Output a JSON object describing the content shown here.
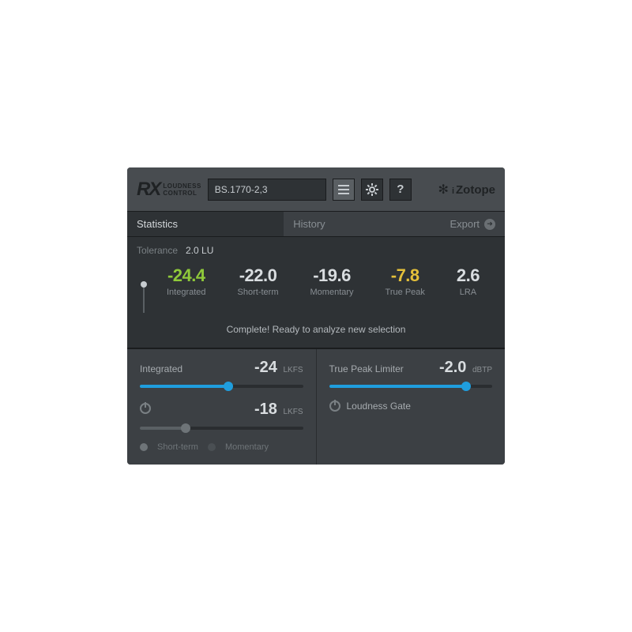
{
  "header": {
    "logo_main": "RX",
    "logo_sub_line1": "LOUDNESS",
    "logo_sub_line2": "CONTROL",
    "preset": "BS.1770-2,3",
    "brand_name": "Zotope"
  },
  "tabs": {
    "statistics": "Statistics",
    "history": "History",
    "export": "Export"
  },
  "stats": {
    "tolerance_label": "Tolerance",
    "tolerance_value": "2.0 LU",
    "meters": [
      {
        "value": "-24.4",
        "label": "Integrated",
        "color": "green"
      },
      {
        "value": "-22.0",
        "label": "Short-term",
        "color": "white"
      },
      {
        "value": "-19.6",
        "label": "Momentary",
        "color": "white"
      },
      {
        "value": "-7.8",
        "label": "True Peak",
        "color": "yellow"
      },
      {
        "value": "2.6",
        "label": "LRA",
        "color": "white"
      }
    ],
    "status": "Complete!  Ready to analyze new selection"
  },
  "controls": {
    "integrated": {
      "label": "Integrated",
      "value": "-24",
      "unit": "LKFS",
      "slider_fill_pct": 54,
      "slider_knob_pct": 54,
      "accent": "#1f9ede"
    },
    "secondary": {
      "value": "-18",
      "unit": "LKFS",
      "slider_fill_pct": 28,
      "slider_knob_pct": 28,
      "enabled": false
    },
    "radio_short": "Short-term",
    "radio_momentary": "Momentary",
    "truepeak": {
      "label": "True Peak Limiter",
      "value": "-2.0",
      "unit": "dBTP",
      "slider_fill_pct": 84,
      "slider_knob_pct": 84
    },
    "gate_label": "Loudness Gate"
  },
  "colors": {
    "bg": "#2e3235",
    "panel": "#3c4044",
    "header": "#484c50",
    "accent": "#1f9ede",
    "green": "#8fc93a",
    "yellow": "#e4c03a",
    "text": "#d9dde0"
  }
}
